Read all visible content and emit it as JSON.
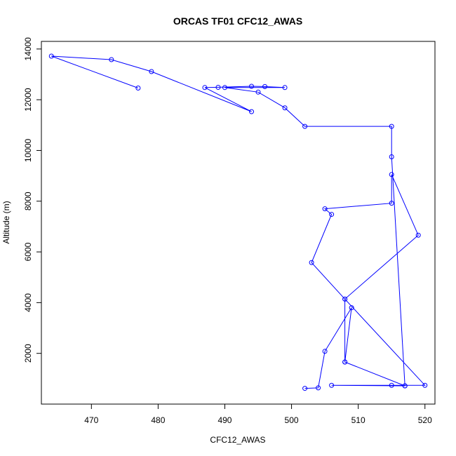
{
  "chart_data": {
    "type": "line",
    "title": "ORCAS TF01 CFC12_AWAS",
    "xlabel": "CFC12_AWAS",
    "ylabel": "Altitude (m)",
    "xlim": [
      462.5,
      521.5
    ],
    "ylim": [
      0,
      14300
    ],
    "x_ticks": [
      470,
      480,
      490,
      500,
      510,
      520
    ],
    "y_ticks": [
      2000,
      4000,
      6000,
      8000,
      10000,
      12000,
      14000
    ],
    "grid": false,
    "series": [
      {
        "color": "#0000ff",
        "marker": "open-circle",
        "points": [
          {
            "x": 502,
            "y": 620
          },
          {
            "x": 504,
            "y": 640
          },
          {
            "x": 505,
            "y": 2080
          },
          {
            "x": 509,
            "y": 3800
          },
          {
            "x": 508,
            "y": 1660
          },
          {
            "x": 517,
            "y": 720
          },
          {
            "x": 506,
            "y": 740
          },
          {
            "x": 515,
            "y": 740
          },
          {
            "x": 520,
            "y": 740
          },
          {
            "x": 508,
            "y": 4140
          },
          {
            "x": 503,
            "y": 5580
          },
          {
            "x": 506,
            "y": 7480
          },
          {
            "x": 505,
            "y": 7700
          },
          {
            "x": 515,
            "y": 7920
          },
          {
            "x": 515,
            "y": 9050
          },
          {
            "x": 519,
            "y": 6660
          },
          {
            "x": 508,
            "y": 4140
          },
          {
            "x": 508,
            "y": 1660
          },
          {
            "x": 517,
            "y": 720
          },
          {
            "x": 515,
            "y": 9750
          },
          {
            "x": 515,
            "y": 10950
          },
          {
            "x": 502,
            "y": 10950
          },
          {
            "x": 499,
            "y": 11680
          },
          {
            "x": 495,
            "y": 12300
          },
          {
            "x": 490,
            "y": 12480
          },
          {
            "x": 499,
            "y": 12480
          },
          {
            "x": 496,
            "y": 12520
          },
          {
            "x": 494,
            "y": 12530
          },
          {
            "x": 489,
            "y": 12490
          },
          {
            "x": 487,
            "y": 12480
          },
          {
            "x": 494,
            "y": 11530
          },
          {
            "x": 479,
            "y": 13110
          },
          {
            "x": 473,
            "y": 13580
          },
          {
            "x": 464,
            "y": 13720
          },
          {
            "x": 477,
            "y": 12460
          }
        ]
      }
    ]
  }
}
